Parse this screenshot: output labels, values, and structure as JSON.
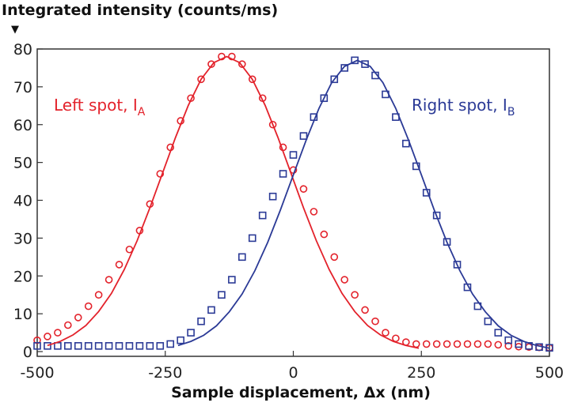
{
  "chart_data": {
    "type": "scatter",
    "title": "Integrated intensity (counts/ms)",
    "ylabel_marker": "▼",
    "xlabel": "Sample displacement, Δx (nm)",
    "xlim": [
      -500,
      500
    ],
    "ylim": [
      0,
      80
    ],
    "xticks": [
      -500,
      -250,
      0,
      250,
      500
    ],
    "yticks": [
      0,
      10,
      20,
      30,
      40,
      50,
      60,
      70,
      80
    ],
    "grid": false,
    "colors": {
      "left": "#e3222b",
      "right": "#2b3a96"
    },
    "annotations": [
      {
        "text": "Left spot, I",
        "sub": "A",
        "series": "left"
      },
      {
        "text": "Right spot, I",
        "sub": "B",
        "series": "right"
      }
    ],
    "series": [
      {
        "name": "Left spot, IA",
        "marker": "circle",
        "x": [
          -500,
          -480,
          -460,
          -440,
          -420,
          -400,
          -380,
          -360,
          -340,
          -320,
          -300,
          -280,
          -260,
          -240,
          -220,
          -200,
          -180,
          -160,
          -140,
          -120,
          -100,
          -80,
          -60,
          -40,
          -20,
          0,
          20,
          40,
          60,
          80,
          100,
          120,
          140,
          160,
          180,
          200,
          220,
          240,
          260,
          280,
          300,
          320,
          340,
          360,
          380,
          400,
          420,
          440,
          460,
          480,
          500
        ],
        "y": [
          3,
          4,
          5,
          7,
          9,
          12,
          15,
          19,
          23,
          27,
          32,
          39,
          47,
          54,
          61,
          67,
          72,
          76,
          78,
          78,
          76,
          72,
          67,
          60,
          54,
          48,
          43,
          37,
          31,
          25,
          19,
          15,
          11,
          8,
          5,
          3.5,
          2.5,
          2,
          2,
          2,
          2,
          2,
          2,
          2,
          2,
          1.8,
          1.5,
          1.3,
          1.2,
          1.1,
          1
        ]
      },
      {
        "name": "Right spot, IB",
        "marker": "square",
        "x": [
          -500,
          -480,
          -460,
          -440,
          -420,
          -400,
          -380,
          -360,
          -340,
          -320,
          -300,
          -280,
          -260,
          -240,
          -220,
          -200,
          -180,
          -160,
          -140,
          -120,
          -100,
          -80,
          -60,
          -40,
          -20,
          0,
          20,
          40,
          60,
          80,
          100,
          120,
          140,
          160,
          180,
          200,
          220,
          240,
          260,
          280,
          300,
          320,
          340,
          360,
          380,
          400,
          420,
          440,
          460,
          480,
          500
        ],
        "y": [
          1.5,
          1.5,
          1.5,
          1.5,
          1.5,
          1.5,
          1.5,
          1.5,
          1.5,
          1.5,
          1.5,
          1.5,
          1.5,
          2,
          3,
          5,
          8,
          11,
          15,
          19,
          25,
          30,
          36,
          41,
          47,
          52,
          57,
          62,
          67,
          72,
          75,
          77,
          76,
          73,
          68,
          62,
          55,
          49,
          42,
          36,
          29,
          23,
          17,
          12,
          8,
          5,
          3,
          2,
          1.5,
          1.2,
          1
        ]
      },
      {
        "name": "Left fit",
        "marker": "line",
        "x": [
          -480,
          -455,
          -430,
          -405,
          -380,
          -355,
          -330,
          -305,
          -280,
          -255,
          -230,
          -205,
          -180,
          -155,
          -130,
          -105,
          -80,
          -55,
          -30,
          -5,
          20,
          45,
          70,
          95,
          120,
          145,
          170,
          195,
          220,
          245
        ],
        "y": [
          1.6,
          2.7,
          4.4,
          6.9,
          10.6,
          15.4,
          21.7,
          29.3,
          38.0,
          47.3,
          56.6,
          65.1,
          72.0,
          76.4,
          78,
          76.4,
          72.0,
          65.1,
          56.6,
          47.3,
          38.0,
          29.3,
          21.7,
          15.4,
          10.6,
          6.9,
          4.4,
          2.7,
          1.6,
          0.9
        ]
      },
      {
        "name": "Right fit",
        "marker": "line",
        "x": [
          -225,
          -200,
          -175,
          -150,
          -125,
          -100,
          -75,
          -50,
          -25,
          0,
          25,
          50,
          75,
          100,
          125,
          150,
          175,
          200,
          225,
          250,
          275,
          300,
          325,
          350,
          375,
          400,
          425,
          450,
          475,
          500
        ],
        "y": [
          1.6,
          2.7,
          4.3,
          6.8,
          10.5,
          15.2,
          21.4,
          28.9,
          37.5,
          46.7,
          55.9,
          64.3,
          71.1,
          75.4,
          77,
          75.4,
          71.1,
          64.3,
          55.9,
          46.7,
          37.5,
          28.9,
          21.4,
          15.2,
          10.5,
          6.8,
          4.3,
          2.7,
          1.6,
          0.9
        ]
      }
    ]
  }
}
